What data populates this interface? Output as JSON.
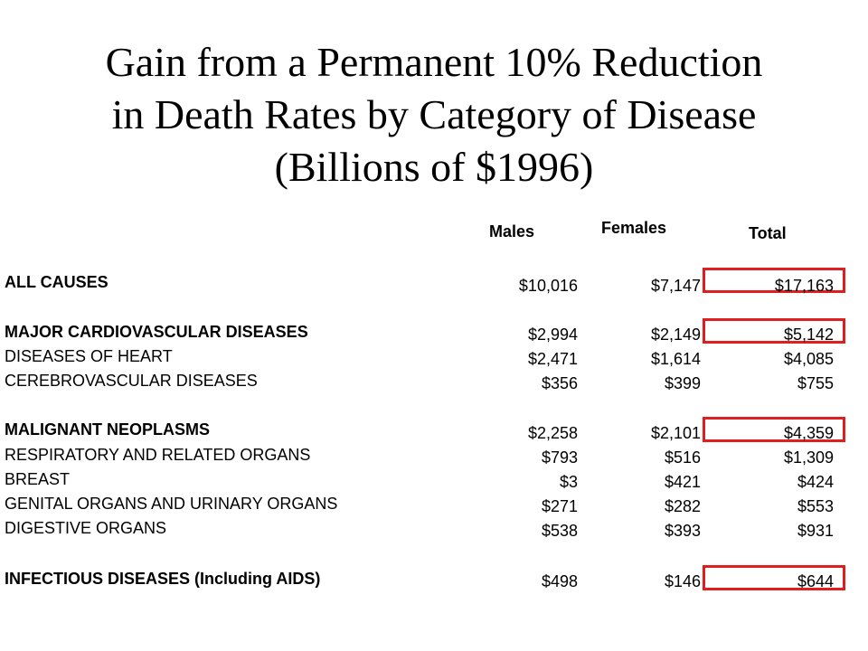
{
  "title_lines": [
    "Gain from a Permanent 10% Reduction",
    "in Death Rates by Category of Disease",
    "(Billions of $1996)"
  ],
  "columns": {
    "males": "Males",
    "females": "Females",
    "total": "Total"
  },
  "rows": [
    {
      "label": "ALL CAUSES",
      "bold": true,
      "males": "$10,016",
      "females": "$7,147",
      "total": "$17,163",
      "highlighted": true
    },
    {
      "label": "MAJOR CARDIOVASCULAR DISEASES",
      "bold": true,
      "males": "$2,994",
      "females": "$2,149",
      "total": "$5,142",
      "highlighted": true
    },
    {
      "label": "DISEASES OF HEART",
      "bold": false,
      "males": "$2,471",
      "females": "$1,614",
      "total": "$4,085",
      "highlighted": false
    },
    {
      "label": "CEREBROVASCULAR DISEASES",
      "bold": false,
      "males": "$356",
      "females": "$399",
      "total": "$755",
      "highlighted": false
    },
    {
      "label": "MALIGNANT NEOPLASMS",
      "bold": true,
      "males": "$2,258",
      "females": "$2,101",
      "total": "$4,359",
      "highlighted": true
    },
    {
      "label": "RESPIRATORY AND RELATED ORGANS",
      "bold": false,
      "males": "$793",
      "females": "$516",
      "total": "$1,309",
      "highlighted": false
    },
    {
      "label": "BREAST",
      "bold": false,
      "males": "$3",
      "females": "$421",
      "total": "$424",
      "highlighted": false
    },
    {
      "label": "GENITAL ORGANS AND URINARY ORGANS",
      "bold": false,
      "males": "$271",
      "females": "$282",
      "total": "$553",
      "highlighted": false
    },
    {
      "label": "DIGESTIVE ORGANS",
      "bold": false,
      "males": "$538",
      "females": "$393",
      "total": "$931",
      "highlighted": false
    },
    {
      "label": "INFECTIOUS DISEASES (Including AIDS)",
      "bold": true,
      "males": "$498",
      "females": "$146",
      "total": "$644",
      "highlighted": true
    }
  ],
  "colors": {
    "highlight_border": "#e01e1e",
    "text": "#000000",
    "background": "#ffffff"
  }
}
